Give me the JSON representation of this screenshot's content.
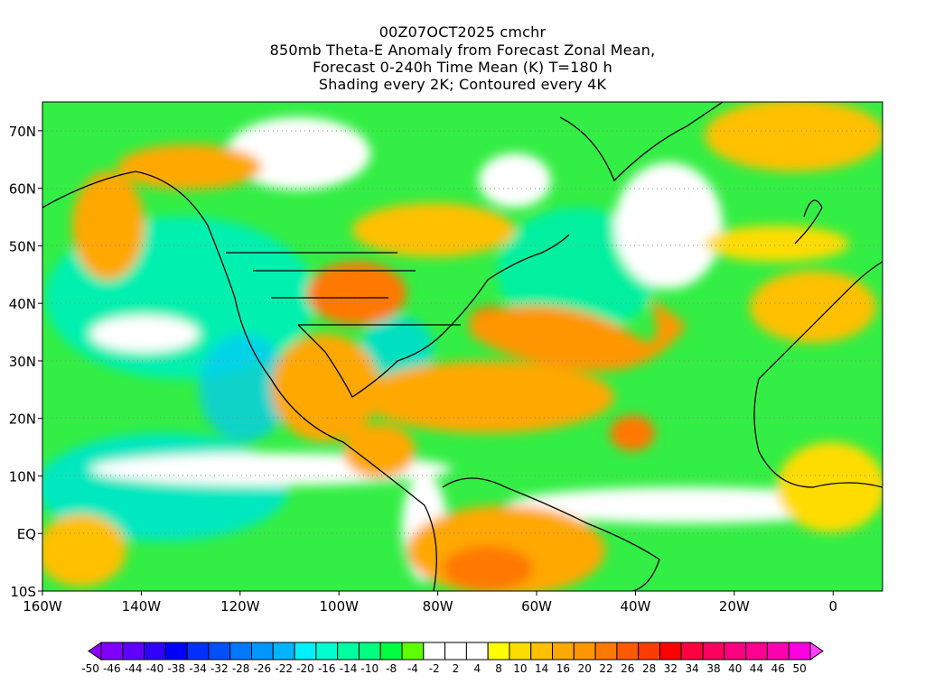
{
  "title": {
    "line1": "00Z07OCT2025 cmchr",
    "line2": "850mb Theta-E Anomaly from Forecast Zonal Mean,",
    "line3": "Forecast 0-240h Time Mean (K) T=180 h",
    "line4": "Shading every 2K; Contoured every 4K"
  },
  "map": {
    "lon_range": [
      -160,
      10
    ],
    "lat_range": [
      -10,
      75
    ],
    "x_ticks": [
      {
        "lon": -160,
        "label": "160W"
      },
      {
        "lon": -140,
        "label": "140W"
      },
      {
        "lon": -120,
        "label": "120W"
      },
      {
        "lon": -100,
        "label": "100W"
      },
      {
        "lon": -80,
        "label": "80W"
      },
      {
        "lon": -60,
        "label": "60W"
      },
      {
        "lon": -40,
        "label": "40W"
      },
      {
        "lon": -20,
        "label": "20W"
      },
      {
        "lon": 0,
        "label": "0"
      }
    ],
    "y_ticks": [
      {
        "lat": 70,
        "label": "70N"
      },
      {
        "lat": 60,
        "label": "60N"
      },
      {
        "lat": 50,
        "label": "50N"
      },
      {
        "lat": 40,
        "label": "40N"
      },
      {
        "lat": 30,
        "label": "30N"
      },
      {
        "lat": 20,
        "label": "20N"
      },
      {
        "lat": 10,
        "label": "10N"
      },
      {
        "lat": 0,
        "label": "EQ"
      },
      {
        "lat": -10,
        "label": "10S"
      }
    ]
  },
  "colorbar": {
    "labels": [
      "-50",
      "-46",
      "-44",
      "-40",
      "-38",
      "-34",
      "-32",
      "-28",
      "-26",
      "-22",
      "-20",
      "-16",
      "-14",
      "-10",
      "-8",
      "-4",
      "-2",
      "2",
      "4",
      "8",
      "10",
      "14",
      "16",
      "20",
      "22",
      "26",
      "28",
      "32",
      "34",
      "38",
      "40",
      "44",
      "46",
      "50"
    ],
    "colors": [
      "#8000ff",
      "#6000ff",
      "#3000ff",
      "#0000ff",
      "#0030ff",
      "#0050ff",
      "#0078ff",
      "#0096ff",
      "#00b4ff",
      "#00f0ff",
      "#00ffd0",
      "#00ffa0",
      "#00ff80",
      "#00ff40",
      "#60ff00",
      "#ffffff",
      "#ffffff",
      "#ffffff",
      "#ffff00",
      "#ffdc00",
      "#ffc000",
      "#ffa800",
      "#ff9600",
      "#ff7800",
      "#ff5a00",
      "#ff3c00",
      "#ff0000",
      "#ff0040",
      "#ff0060",
      "#ff0080",
      "#ff0090",
      "#ff00b0",
      "#ff00e0"
    ],
    "low_color": "#9000ff",
    "high_color": "#ff40ff"
  }
}
